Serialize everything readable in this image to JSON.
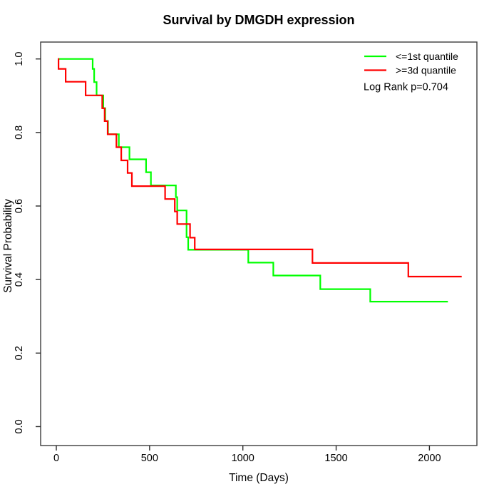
{
  "chart_data": {
    "type": "line",
    "subtype": "kaplan-meier-step",
    "title": "Survival by DMGDH expression",
    "xlabel": "Time (Days)",
    "ylabel": "Survival Probability",
    "annotation": "Log Rank p=0.704",
    "grid": false,
    "legend_position": "top-right",
    "x_ticks": [
      0,
      500,
      1000,
      1500,
      2000
    ],
    "x_tick_labels": [
      "0",
      "500",
      "1000",
      "1500",
      "2000"
    ],
    "y_ticks": [
      0.0,
      0.2,
      0.4,
      0.6,
      0.8,
      1.0
    ],
    "y_tick_labels": [
      "0.0",
      "0.2",
      "0.4",
      "0.6",
      "0.8",
      "1.0"
    ],
    "xlim": [
      -85,
      2255
    ],
    "ylim": [
      -0.05,
      1.045
    ],
    "series": [
      {
        "name": "<=1st quantile",
        "color": "#00FF00",
        "end_time": 2099,
        "points": [
          [
            10,
            1.0
          ],
          [
            195,
            0.973
          ],
          [
            203,
            0.937
          ],
          [
            216,
            0.901
          ],
          [
            252,
            0.866
          ],
          [
            262,
            0.831
          ],
          [
            277,
            0.795
          ],
          [
            335,
            0.76
          ],
          [
            392,
            0.727
          ],
          [
            481,
            0.692
          ],
          [
            507,
            0.656
          ],
          [
            641,
            0.624
          ],
          [
            648,
            0.588
          ],
          [
            698,
            0.515
          ],
          [
            707,
            0.481
          ],
          [
            1029,
            0.446
          ],
          [
            1163,
            0.411
          ],
          [
            1415,
            0.374
          ],
          [
            1683,
            0.34
          ]
        ]
      },
      {
        "name": ">=3d quantile",
        "color": "#FF0000",
        "end_time": 2173,
        "points": [
          [
            8,
            1.0
          ],
          [
            12,
            0.973
          ],
          [
            50,
            0.938
          ],
          [
            157,
            0.901
          ],
          [
            246,
            0.866
          ],
          [
            259,
            0.831
          ],
          [
            275,
            0.795
          ],
          [
            322,
            0.76
          ],
          [
            348,
            0.724
          ],
          [
            382,
            0.69
          ],
          [
            405,
            0.654
          ],
          [
            583,
            0.619
          ],
          [
            635,
            0.585
          ],
          [
            648,
            0.551
          ],
          [
            717,
            0.514
          ],
          [
            742,
            0.482
          ],
          [
            1373,
            0.445
          ],
          [
            1887,
            0.408
          ]
        ]
      }
    ]
  }
}
